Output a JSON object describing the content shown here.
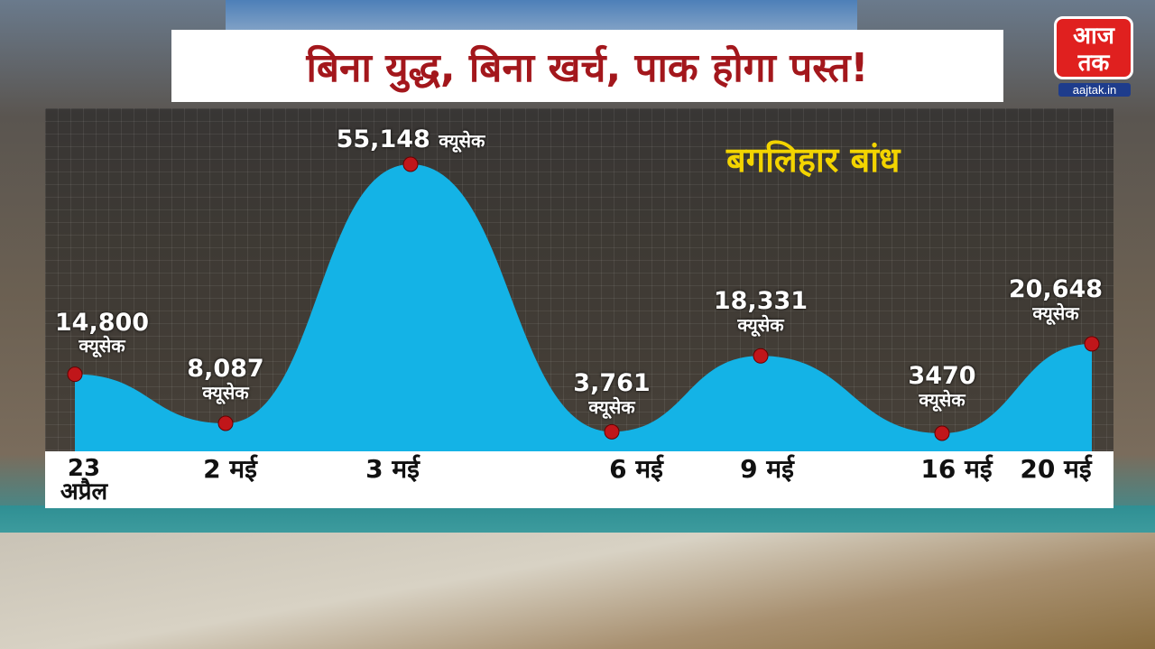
{
  "headline": "बिना युद्ध, बिना खर्च, पाक होगा पस्त!",
  "logo": {
    "text_top": "आज",
    "text_bottom": "तक",
    "site": "aajtak.in"
  },
  "colors": {
    "headline": "#a3171c",
    "area": "#14b3e6",
    "marker": "#c0161a",
    "heading": "#f3d400"
  },
  "chart_data": {
    "type": "area",
    "title": "बगलिहार बांध",
    "unit": "क्यूसेक",
    "categories": [
      "23 अप्रैल",
      "2 मई",
      "3 मई",
      "6 मई",
      "9 मई",
      "16 मई",
      "20 मई"
    ],
    "values": [
      14800,
      8087,
      55148,
      3761,
      18331,
      3470,
      20648
    ],
    "value_labels": [
      "14,800",
      "8,087",
      "55,148",
      "3,761",
      "18,331",
      "3470",
      "20,648"
    ],
    "grid": true
  }
}
